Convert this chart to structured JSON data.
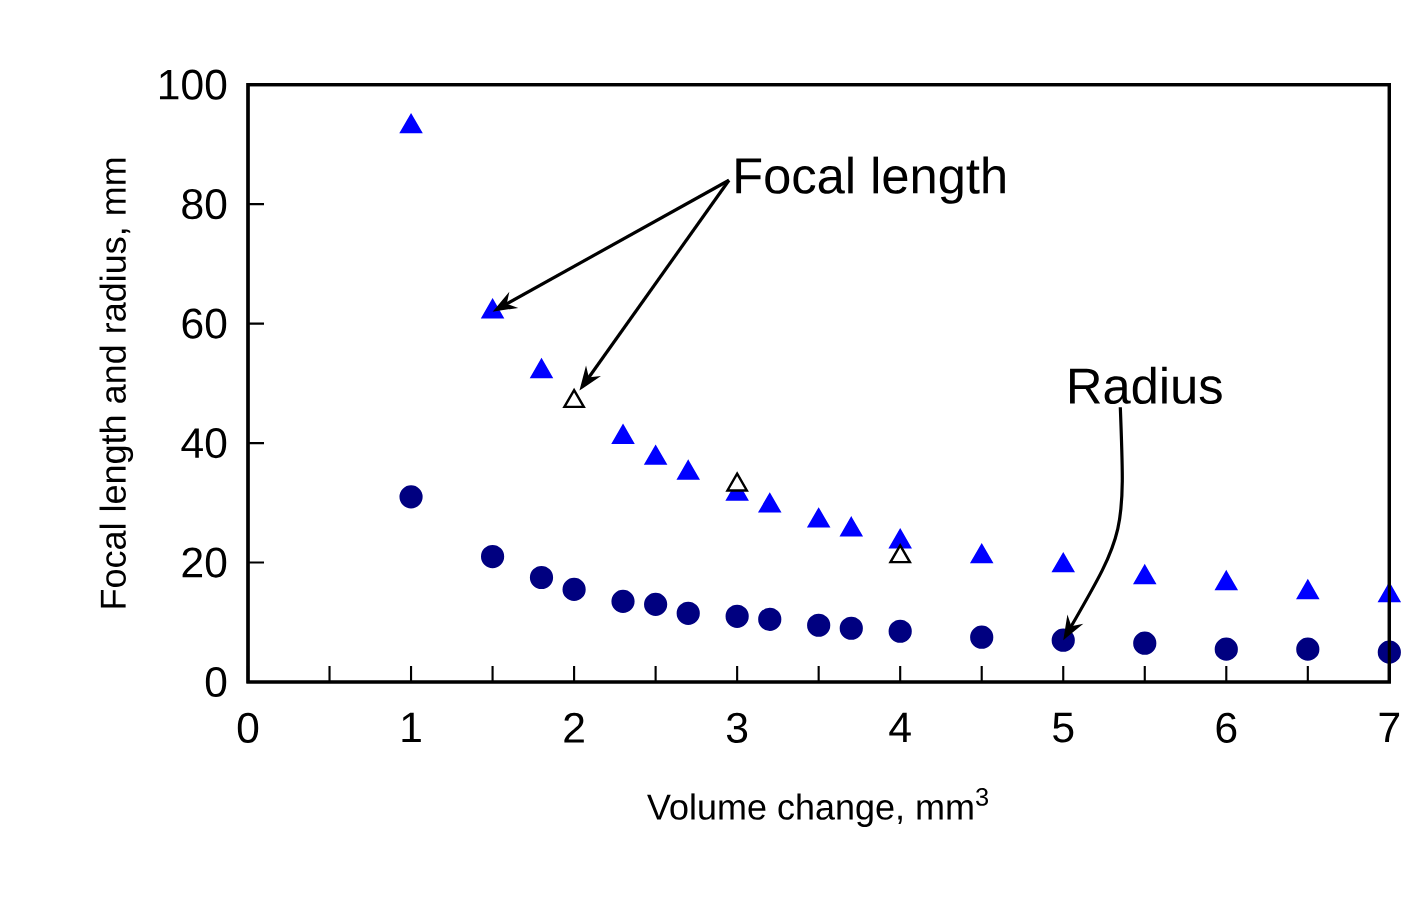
{
  "chart_data": {
    "type": "scatter",
    "xlabel": "Volume change, mm$^{3}$",
    "ylabel": "Focal length and radius, mm",
    "x": [
      1,
      1.5,
      1.8,
      2,
      2.3,
      2.5,
      2.7,
      3,
      3.2,
      3.5,
      3.7,
      4,
      4.5,
      5,
      5.5,
      6,
      6.5,
      7
    ],
    "series": [
      {
        "color": "#0000ff",
        "marker": "triangle",
        "x": [
          1,
          1.5,
          1.8,
          2.3,
          2.5,
          2.7,
          3,
          3.2,
          3.5,
          3.7,
          4,
          4.5,
          5,
          5.5,
          6,
          6.5,
          7
        ],
        "values": [
          93,
          62,
          52,
          41,
          37.5,
          35,
          31.5,
          29.5,
          27,
          25.5,
          23.5,
          21,
          19.5,
          17.5,
          16.5,
          15,
          14.5
        ]
      },
      {
        "color": "#ffffff",
        "marker": "triangle",
        "x": [
          2,
          3,
          4
        ],
        "values": [
          47,
          33,
          21
        ]
      },
      {
        "color": "#000080",
        "marker": "circle",
        "values": [
          31,
          21,
          17.5,
          15.5,
          13.5,
          13,
          11.5,
          11,
          10.5,
          9.5,
          9,
          8.5,
          7.5,
          7,
          6.5,
          5.5,
          5.5,
          5
        ]
      }
    ],
    "annotations": [
      {
        "text": "Focal length",
        "x": 1.5,
        "y": 62
      },
      {
        "text": "Radius",
        "x": 5,
        "y": 7
      }
    ],
    "xlim": [
      0,
      7
    ],
    "ylim": [
      0,
      100
    ],
    "xticks": [
      0,
      {
        "value": 0.5,
        "label": null
      },
      1,
      {
        "value": 1.5,
        "label": null
      },
      2,
      {
        "value": 2.5,
        "label": null
      },
      3,
      {
        "value": 3.5,
        "label": null
      },
      4,
      {
        "value": 4.5,
        "label": null
      },
      5,
      {
        "value": 5.5,
        "label": null
      },
      6,
      {
        "value": 6.5,
        "label": null
      },
      7
    ],
    "yticks": [
      0,
      20,
      40,
      60,
      80,
      100
    ],
    "grid": false
  }
}
